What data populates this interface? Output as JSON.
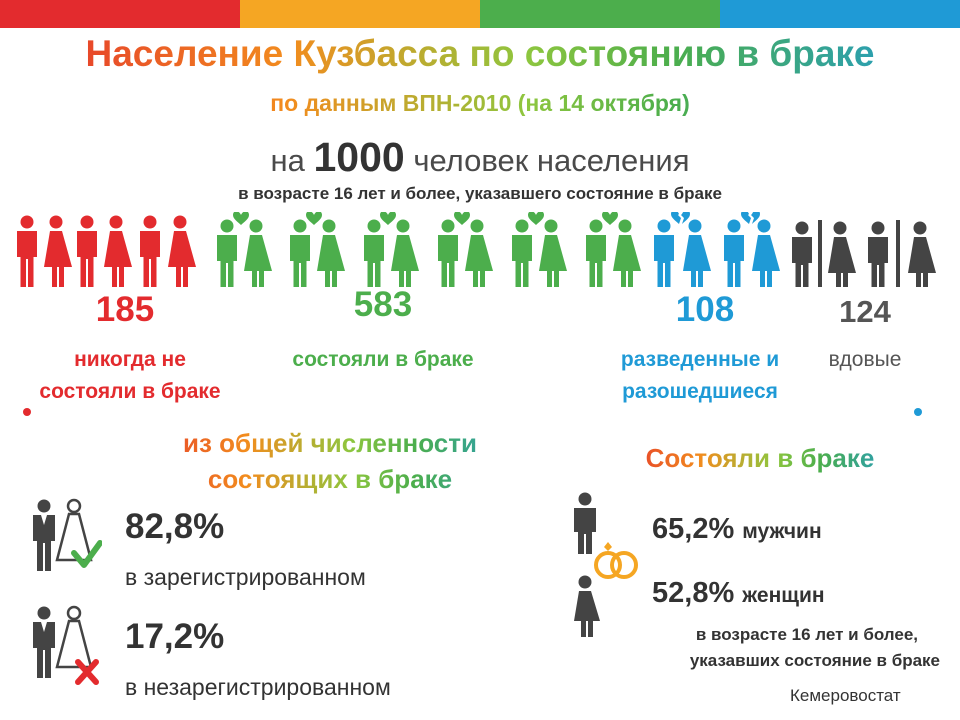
{
  "header": {
    "stripe_colors": [
      "#e32b2e",
      "#f5a623",
      "#4cae4c",
      "#1f9ad6"
    ],
    "title": "Население Кузбасса по состоянию в браке",
    "subtitle": "по данным ВПН-2010 (на 14 октября)",
    "per_prefix": "на",
    "per_number": "1000",
    "per_suffix": "человек населения",
    "age_note": "в возрасте 16 лет и более, указавшего состояние в браке"
  },
  "categories": [
    {
      "value": "185",
      "label_line1": "никогда не",
      "label_line2": "состояли в браке",
      "color": "#e32b2e"
    },
    {
      "value": "583",
      "label_line1": "состояли в браке",
      "label_line2": "",
      "color": "#4cae4c"
    },
    {
      "value": "108",
      "label_line1": "разведенные и",
      "label_line2": "разошедшиеся",
      "color": "#1f9ad6"
    },
    {
      "value": "124",
      "label_line1": "вдовые",
      "label_line2": "",
      "color": "#555555"
    }
  ],
  "married_share": {
    "title_line1": "из общей численности",
    "title_line2": "состоящих в браке",
    "registered": {
      "value": "82,8%",
      "label": "в зарегистрированном"
    },
    "unregistered": {
      "value": "17,2%",
      "label": "в незарегистрированном"
    }
  },
  "ever_married": {
    "title": "Состояли в браке",
    "men": {
      "value": "65,2%",
      "label": "мужчин"
    },
    "women": {
      "value": "52,8%",
      "label": "женщин"
    },
    "note_line1": "в возрасте 16 лет и более,",
    "note_line2": "указавших состояние в браке"
  },
  "source": "Кемеровостат"
}
